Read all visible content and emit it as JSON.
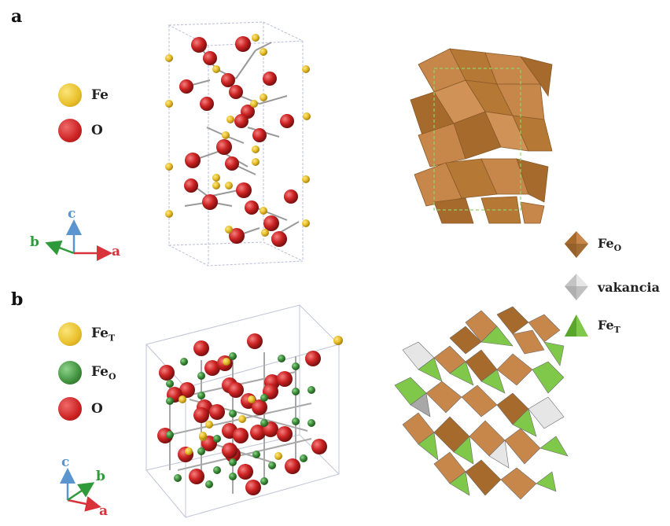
{
  "colors": {
    "fe": "#e8bf2a",
    "fe_t": "#e8bf2a",
    "fe_o": "#3f8f3c",
    "o": "#cc2222",
    "axis_a": "#d8323a",
    "axis_b": "#2e9a3a",
    "axis_c": "#5a95d0",
    "octahedron": "#c8874a",
    "tetrahedron": "#7fc84a",
    "vacancy": "#d8d8d8"
  },
  "panel_a": {
    "letter": "a",
    "legend": [
      {
        "symbol": "Fe",
        "sub": "",
        "color_key": "fe"
      },
      {
        "symbol": "O",
        "sub": "",
        "color_key": "o"
      }
    ],
    "axes": {
      "c": "c",
      "b": "b",
      "a": "a"
    }
  },
  "panel_b": {
    "letter": "b",
    "legend": [
      {
        "symbol": "Fe",
        "sub": "T",
        "color_key": "fe_t"
      },
      {
        "symbol": "Fe",
        "sub": "O",
        "color_key": "fe_o"
      },
      {
        "symbol": "O",
        "sub": "",
        "color_key": "o"
      }
    ],
    "axes": {
      "c": "c",
      "b": "b",
      "a": "a"
    }
  },
  "polyhedra_legend": [
    {
      "symbol": "Fe",
      "sub": "O",
      "type": "octahedron"
    },
    {
      "symbol": "vakancia",
      "sub": "",
      "type": "vacancy"
    },
    {
      "symbol": "Fe",
      "sub": "T",
      "type": "tetrahedron"
    }
  ]
}
